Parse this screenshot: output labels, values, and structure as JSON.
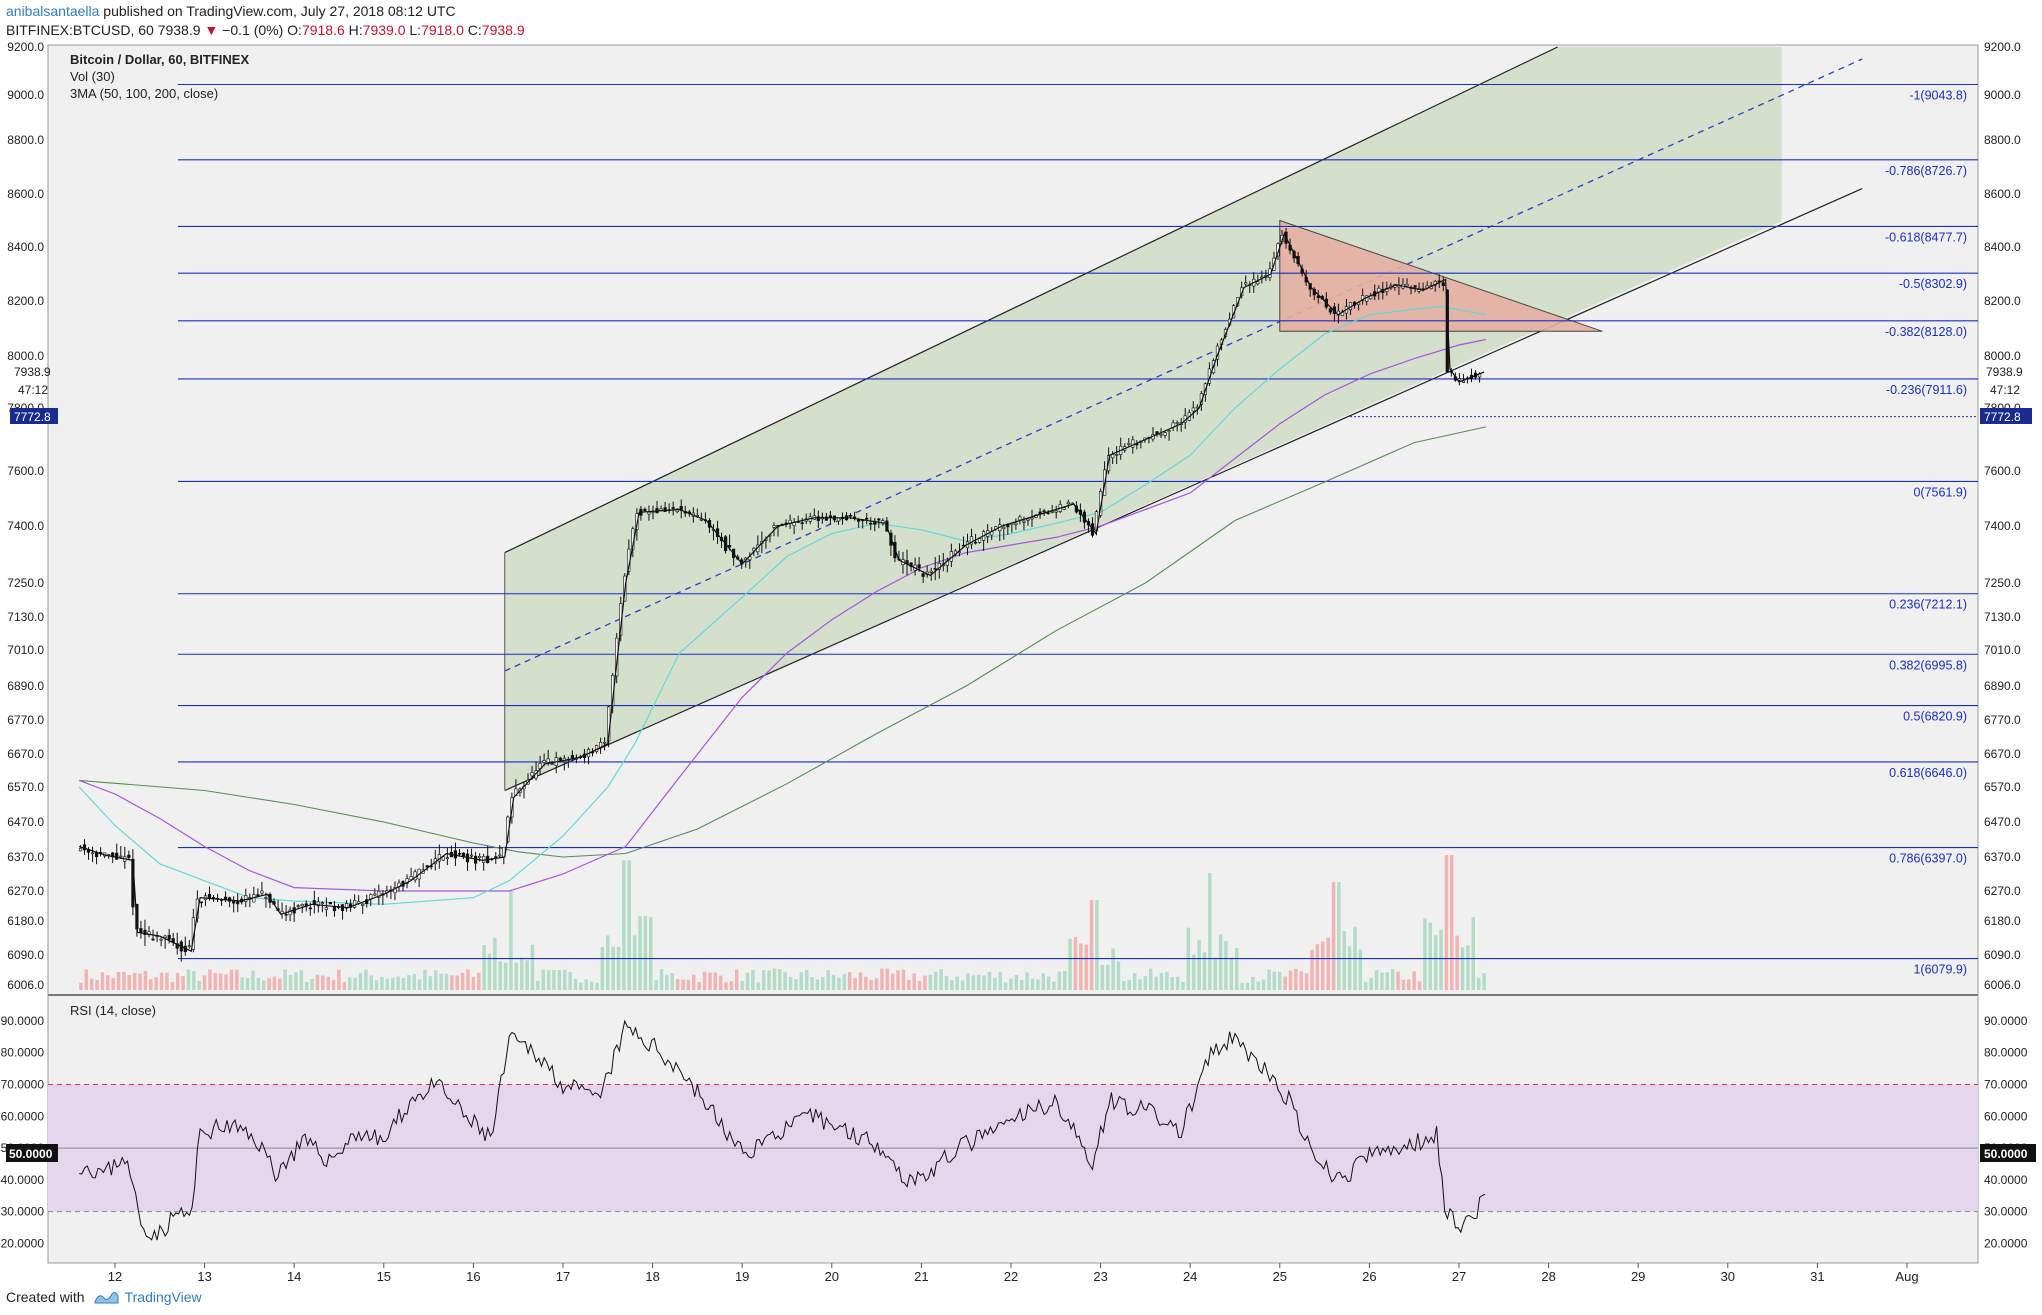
{
  "header": {
    "user": "anibalsantaella",
    "published": "published on TradingView.com, July 27, 2018 08:12 UTC",
    "symbol": "BITFINEX:BTCUSD, 60",
    "last": "7938.9",
    "change": "−0.1 (0%)",
    "o_label": "O:",
    "o_value": "7918.6",
    "h_label": "H:",
    "h_value": "7939.0",
    "l_label": "L:",
    "l_value": "7918.0",
    "c_label": "C:",
    "c_value": "7938.9"
  },
  "legend": {
    "title": "Bitcoin / Dollar, 60, BITFINEX",
    "vol": "Vol (30)",
    "ma": "3MA (50, 100, 200, close)",
    "rsi": "RSI (14, close)"
  },
  "price_labels": {
    "last": "7938.9",
    "countdown": "47:12",
    "marker": "7772.8"
  },
  "footer": {
    "created": "Created with",
    "brand": "TradingView"
  },
  "colors": {
    "candle": "#111111",
    "ma50": "#5fd9d9",
    "ma100": "#a755e0",
    "ma200": "#5a8a5a",
    "fib": "#1a2ec6",
    "channel_fill": "#cfdcc6",
    "triangle_fill": "#e6b0a3",
    "rsi_band": "#e5d6ee",
    "vol_up": "#a8d8c0",
    "vol_down": "#f2a8a8"
  },
  "chart_data": [
    {
      "type": "candlestick",
      "title": "Bitcoin / Dollar, 60, BITFINEX",
      "x_ticks": [
        "12",
        "13",
        "14",
        "15",
        "16",
        "17",
        "18",
        "19",
        "20",
        "21",
        "22",
        "23",
        "24",
        "25",
        "26",
        "27",
        "28",
        "29",
        "30",
        "31",
        "Aug"
      ],
      "y_ticks": [
        "6006.0",
        "6090.0",
        "6180.0",
        "6270.0",
        "6370.0",
        "6470.0",
        "6570.0",
        "6670.0",
        "6770.0",
        "6890.0",
        "7010.0",
        "7130.0",
        "7250.0",
        "7400.0",
        "7600.0",
        "7800.0",
        "8000.0",
        "8200.0",
        "8400.0",
        "8600.0",
        "8800.0",
        "9000.0",
        "9200.0"
      ],
      "y_range": [
        6006,
        9200
      ],
      "close_path": [
        [
          11.6,
          6400
        ],
        [
          11.9,
          6375
        ],
        [
          12.2,
          6360
        ],
        [
          12.25,
          6150
        ],
        [
          12.5,
          6140
        ],
        [
          12.85,
          6100
        ],
        [
          12.95,
          6250
        ],
        [
          13.4,
          6240
        ],
        [
          13.7,
          6260
        ],
        [
          13.85,
          6200
        ],
        [
          14.2,
          6230
        ],
        [
          14.6,
          6220
        ],
        [
          15.0,
          6260
        ],
        [
          15.3,
          6300
        ],
        [
          15.7,
          6380
        ],
        [
          16.1,
          6360
        ],
        [
          16.35,
          6370
        ],
        [
          16.45,
          6540
        ],
        [
          16.8,
          6640
        ],
        [
          17.2,
          6660
        ],
        [
          17.5,
          6700
        ],
        [
          17.7,
          7250
        ],
        [
          17.85,
          7450
        ],
        [
          18.3,
          7460
        ],
        [
          18.6,
          7420
        ],
        [
          19.0,
          7300
        ],
        [
          19.4,
          7400
        ],
        [
          19.8,
          7430
        ],
        [
          20.2,
          7430
        ],
        [
          20.6,
          7410
        ],
        [
          20.75,
          7310
        ],
        [
          21.1,
          7270
        ],
        [
          21.5,
          7350
        ],
        [
          21.9,
          7400
        ],
        [
          22.3,
          7440
        ],
        [
          22.7,
          7480
        ],
        [
          22.95,
          7380
        ],
        [
          23.1,
          7650
        ],
        [
          23.5,
          7700
        ],
        [
          23.9,
          7750
        ],
        [
          24.1,
          7800
        ],
        [
          24.3,
          8000
        ],
        [
          24.6,
          8250
        ],
        [
          24.9,
          8300
        ],
        [
          25.05,
          8450
        ],
        [
          25.35,
          8250
        ],
        [
          25.65,
          8150
        ],
        [
          25.95,
          8210
        ],
        [
          26.3,
          8260
        ],
        [
          26.6,
          8240
        ],
        [
          26.85,
          8280
        ],
        [
          26.9,
          7950
        ],
        [
          27.0,
          7900
        ],
        [
          27.15,
          7920
        ],
        [
          27.28,
          7939
        ]
      ],
      "ma50_path": [
        [
          11.6,
          6570
        ],
        [
          12.0,
          6460
        ],
        [
          12.5,
          6350
        ],
        [
          13.0,
          6300
        ],
        [
          13.5,
          6250
        ],
        [
          14.0,
          6240
        ],
        [
          15.0,
          6230
        ],
        [
          16.0,
          6250
        ],
        [
          16.4,
          6300
        ],
        [
          17.0,
          6430
        ],
        [
          17.5,
          6570
        ],
        [
          17.8,
          6700
        ],
        [
          18.3,
          7000
        ],
        [
          19.0,
          7200
        ],
        [
          19.5,
          7320
        ],
        [
          20.0,
          7380
        ],
        [
          20.5,
          7410
        ],
        [
          21.0,
          7390
        ],
        [
          21.5,
          7360
        ],
        [
          22.0,
          7380
        ],
        [
          22.5,
          7410
        ],
        [
          23.0,
          7450
        ],
        [
          23.5,
          7550
        ],
        [
          24.0,
          7650
        ],
        [
          24.5,
          7800
        ],
        [
          25.0,
          7950
        ],
        [
          25.5,
          8080
        ],
        [
          26.0,
          8150
        ],
        [
          26.5,
          8170
        ],
        [
          26.8,
          8180
        ],
        [
          27.3,
          8150
        ]
      ],
      "ma100_path": [
        [
          11.6,
          6590
        ],
        [
          12.0,
          6550
        ],
        [
          12.5,
          6480
        ],
        [
          13.0,
          6400
        ],
        [
          13.5,
          6330
        ],
        [
          14.0,
          6280
        ],
        [
          15.0,
          6270
        ],
        [
          16.0,
          6270
        ],
        [
          16.4,
          6270
        ],
        [
          17.0,
          6320
        ],
        [
          17.7,
          6400
        ],
        [
          18.3,
          6600
        ],
        [
          19.0,
          6850
        ],
        [
          19.5,
          7000
        ],
        [
          20.0,
          7120
        ],
        [
          20.5,
          7220
        ],
        [
          21.0,
          7290
        ],
        [
          21.5,
          7330
        ],
        [
          22.0,
          7350
        ],
        [
          22.5,
          7370
        ],
        [
          23.0,
          7400
        ],
        [
          23.5,
          7460
        ],
        [
          24.0,
          7520
        ],
        [
          24.5,
          7640
        ],
        [
          25.0,
          7750
        ],
        [
          25.5,
          7850
        ],
        [
          26.0,
          7930
        ],
        [
          26.5,
          7990
        ],
        [
          27.0,
          8040
        ],
        [
          27.3,
          8060
        ]
      ],
      "ma200_path": [
        [
          11.6,
          6590
        ],
        [
          13.0,
          6560
        ],
        [
          14.0,
          6520
        ],
        [
          15.0,
          6470
        ],
        [
          16.0,
          6410
        ],
        [
          16.5,
          6385
        ],
        [
          17.0,
          6370
        ],
        [
          17.7,
          6380
        ],
        [
          18.5,
          6450
        ],
        [
          19.5,
          6580
        ],
        [
          20.5,
          6730
        ],
        [
          21.5,
          6890
        ],
        [
          22.5,
          7080
        ],
        [
          23.5,
          7250
        ],
        [
          24.5,
          7420
        ],
        [
          25.5,
          7560
        ],
        [
          26.5,
          7690
        ],
        [
          27.3,
          7740
        ]
      ],
      "fibonacci_levels": [
        {
          "ratio": "-1",
          "price": 9043.8,
          "label": "-1(9043.8)"
        },
        {
          "ratio": "-0.786",
          "price": 8726.7,
          "label": "-0.786(8726.7)"
        },
        {
          "ratio": "-0.618",
          "price": 8477.7,
          "label": "-0.618(8477.7)"
        },
        {
          "ratio": "-0.5",
          "price": 8302.9,
          "label": "-0.5(8302.9)"
        },
        {
          "ratio": "-0.382",
          "price": 8128.0,
          "label": "-0.382(8128.0)"
        },
        {
          "ratio": "-0.236",
          "price": 7911.6,
          "label": "-0.236(7911.6)"
        },
        {
          "ratio": "0",
          "price": 7561.9,
          "label": "0(7561.9)"
        },
        {
          "ratio": "0.236",
          "price": 7212.1,
          "label": "0.236(7212.1)"
        },
        {
          "ratio": "0.382",
          "price": 6995.8,
          "label": "0.382(6995.8)"
        },
        {
          "ratio": "0.5",
          "price": 6820.9,
          "label": "0.5(6820.9)"
        },
        {
          "ratio": "0.618",
          "price": 6646.0,
          "label": "0.618(6646.0)"
        },
        {
          "ratio": "0.786",
          "price": 6397.0,
          "label": "0.786(6397.0)"
        },
        {
          "ratio": "1",
          "price": 6079.9,
          "label": "1(6079.9)"
        }
      ],
      "channel": {
        "upper": [
          [
            16.35,
            7330
          ],
          [
            28.1,
            9200
          ]
        ],
        "lower": [
          [
            16.35,
            6560
          ],
          [
            31.5,
            8620
          ]
        ],
        "mid": [
          [
            16.35,
            6940
          ],
          [
            31.5,
            9150
          ]
        ]
      },
      "triangle": [
        [
          25.0,
          8500
        ],
        [
          28.6,
          8090
        ],
        [
          25.0,
          8090
        ]
      ],
      "dotted_level": 7772.8
    },
    {
      "type": "line",
      "title": "RSI (14, close)",
      "y_ticks": [
        "20.0000",
        "30.0000",
        "40.0000",
        "50.0000",
        "60.0000",
        "70.0000",
        "80.0000",
        "90.0000"
      ],
      "y_range": [
        17,
        95
      ],
      "band": [
        30,
        70
      ],
      "midline": "50.0000",
      "values_path": [
        [
          11.6,
          45
        ],
        [
          11.9,
          42
        ],
        [
          12.1,
          48
        ],
        [
          12.2,
          38
        ],
        [
          12.3,
          25
        ],
        [
          12.5,
          23
        ],
        [
          12.7,
          30
        ],
        [
          12.85,
          28
        ],
        [
          12.95,
          55
        ],
        [
          13.3,
          57
        ],
        [
          13.6,
          52
        ],
        [
          13.8,
          42
        ],
        [
          14.1,
          52
        ],
        [
          14.4,
          46
        ],
        [
          14.7,
          55
        ],
        [
          15.0,
          52
        ],
        [
          15.3,
          65
        ],
        [
          15.6,
          70
        ],
        [
          15.9,
          60
        ],
        [
          16.2,
          53
        ],
        [
          16.4,
          84
        ],
        [
          16.7,
          80
        ],
        [
          17.0,
          70
        ],
        [
          17.4,
          65
        ],
        [
          17.7,
          88
        ],
        [
          18.0,
          82
        ],
        [
          18.3,
          75
        ],
        [
          18.7,
          60
        ],
        [
          19.0,
          48
        ],
        [
          19.4,
          55
        ],
        [
          19.8,
          60
        ],
        [
          20.2,
          55
        ],
        [
          20.6,
          50
        ],
        [
          20.8,
          40
        ],
        [
          21.1,
          42
        ],
        [
          21.4,
          50
        ],
        [
          21.8,
          55
        ],
        [
          22.1,
          60
        ],
        [
          22.5,
          65
        ],
        [
          22.9,
          45
        ],
        [
          23.1,
          65
        ],
        [
          23.5,
          62
        ],
        [
          23.9,
          55
        ],
        [
          24.2,
          78
        ],
        [
          24.5,
          85
        ],
        [
          24.8,
          75
        ],
        [
          25.1,
          65
        ],
        [
          25.4,
          45
        ],
        [
          25.7,
          40
        ],
        [
          26.0,
          48
        ],
        [
          26.4,
          50
        ],
        [
          26.75,
          55
        ],
        [
          26.85,
          30
        ],
        [
          27.0,
          26
        ],
        [
          27.2,
          30
        ],
        [
          27.3,
          36
        ]
      ]
    },
    {
      "type": "bar",
      "title": "Vol (30)",
      "values_note_hidden": false,
      "peaks": [
        [
          16.4,
          0.55
        ],
        [
          17.7,
          0.72
        ],
        [
          22.9,
          0.5
        ],
        [
          24.2,
          0.65
        ],
        [
          25.6,
          0.6
        ],
        [
          26.85,
          0.75
        ]
      ]
    }
  ]
}
